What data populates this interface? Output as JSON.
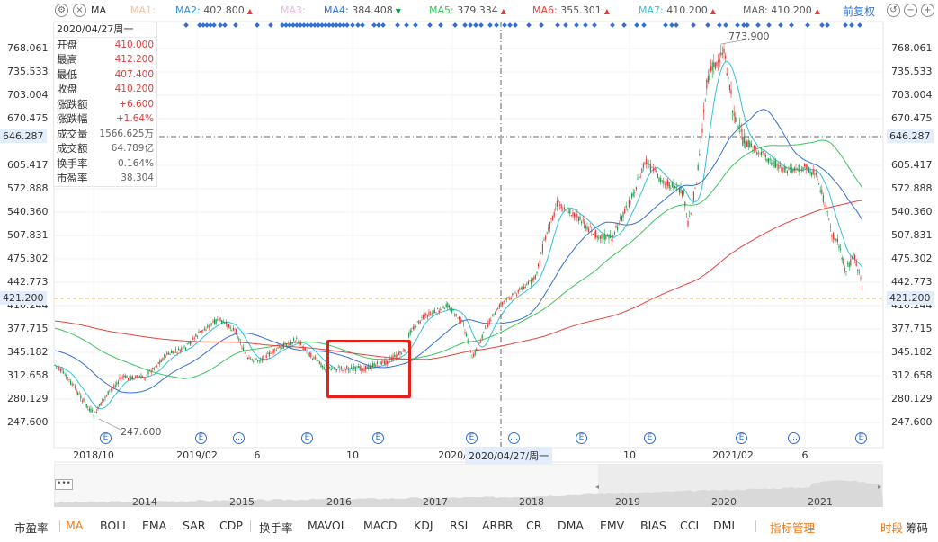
{
  "ma_bar": {
    "indicator": "MA",
    "items": [
      {
        "label": "MA1:",
        "value": "",
        "color": "#f6c4a0",
        "trend": ""
      },
      {
        "label": "MA2:",
        "value": "402.800",
        "color": "#2f8ed8",
        "trend": "up"
      },
      {
        "label": "MA3:",
        "value": "",
        "color": "#f1b6e0",
        "trend": ""
      },
      {
        "label": "MA4:",
        "value": "384.408",
        "color": "#2f6fd6",
        "trend": "down"
      },
      {
        "label": "MA5:",
        "value": "379.334",
        "color": "#3ec45c",
        "trend": "up"
      },
      {
        "label": "MA6:",
        "value": "355.301",
        "color": "#e3443b",
        "trend": "up"
      },
      {
        "label": "MA7:",
        "value": "410.200",
        "color": "#35c0d8",
        "trend": "up"
      },
      {
        "label": "MA8:",
        "value": "410.200",
        "color": "#666666",
        "trend": "up"
      }
    ],
    "adjust_label": "前复权"
  },
  "y_axis": {
    "ticks": [
      "768.061",
      "735.533",
      "703.004",
      "670.475",
      "605.417",
      "572.888",
      "540.360",
      "507.831",
      "475.302",
      "442.773",
      "410.244",
      "377.715",
      "345.182",
      "312.658",
      "280.129",
      "247.600"
    ],
    "crosshair_value": "646.287",
    "last_price_value": "421.200"
  },
  "x_axis": {
    "ticks": [
      "2018/10",
      "2019/02",
      "6",
      "10",
      "2020/",
      "10",
      "2021/02",
      "6"
    ],
    "crosshair_date": "2020/04/27/周一"
  },
  "info_box": {
    "date": "2020/04/27周一",
    "rows": [
      {
        "label": "开盘",
        "value": "410.000",
        "tone": "red"
      },
      {
        "label": "最高",
        "value": "412.200",
        "tone": "red"
      },
      {
        "label": "最低",
        "value": "407.400",
        "tone": "red"
      },
      {
        "label": "收盘",
        "value": "410.200",
        "tone": "red"
      },
      {
        "label": "涨跌额",
        "value": "+6.600",
        "tone": "red"
      },
      {
        "label": "涨跌幅",
        "value": "+1.64%",
        "tone": "red"
      },
      {
        "label": "成交量",
        "value": "1566.625万",
        "tone": "gray"
      },
      {
        "label": "成交额",
        "value": "64.789亿",
        "tone": "gray"
      },
      {
        "label": "换手率",
        "value": "0.164%",
        "tone": "gray"
      },
      {
        "label": "市盈率",
        "value": "38.304",
        "tone": "gray"
      }
    ]
  },
  "annotations": {
    "high": "773.900",
    "low": "247.600"
  },
  "navigator": {
    "years": [
      "2014",
      "2015",
      "2016",
      "2017",
      "2018",
      "2019",
      "2020",
      "2021"
    ],
    "dots": "•••"
  },
  "tabs": [
    "市盈率",
    "MA",
    "BOLL",
    "EMA",
    "SAR",
    "CDP",
    "换手率",
    "MAVOL",
    "MACD",
    "KDJ",
    "RSI",
    "ARBR",
    "CR",
    "DMA",
    "EMV",
    "BIAS",
    "CCI",
    "DMI",
    "指标管理",
    "时段",
    "筹码"
  ],
  "colors": {
    "up": "#e33b3b",
    "down": "#1f9b4a",
    "accent": "#f07a1a",
    "blue": "#2f6fd6"
  },
  "chart_data": {
    "type": "candlestick",
    "title": "",
    "x_range": [
      "2018/08",
      "2021/05"
    ],
    "ylim": [
      247.6,
      790
    ],
    "key_points": [
      {
        "date": "2018/10",
        "close": 260
      },
      {
        "date": "2019/02",
        "close": 320
      },
      {
        "date": "2019/05",
        "close": 390
      },
      {
        "date": "2019/10",
        "close": 330
      },
      {
        "date": "2020/01",
        "close": 320
      },
      {
        "date": "2020/02",
        "close": 375
      },
      {
        "date": "2020/04/27",
        "close": 410.2
      },
      {
        "date": "2020/07",
        "close": 540
      },
      {
        "date": "2020/11",
        "close": 600
      },
      {
        "date": "2021/02",
        "close": 773.9
      },
      {
        "date": "2021/05",
        "close": 421.2
      }
    ],
    "series": [
      {
        "name": "MA2",
        "color": "#2f8ed8"
      },
      {
        "name": "MA4",
        "color": "#2f6fd6"
      },
      {
        "name": "MA5",
        "color": "#3ec45c"
      },
      {
        "name": "MA6",
        "color": "#e3443b"
      }
    ]
  }
}
